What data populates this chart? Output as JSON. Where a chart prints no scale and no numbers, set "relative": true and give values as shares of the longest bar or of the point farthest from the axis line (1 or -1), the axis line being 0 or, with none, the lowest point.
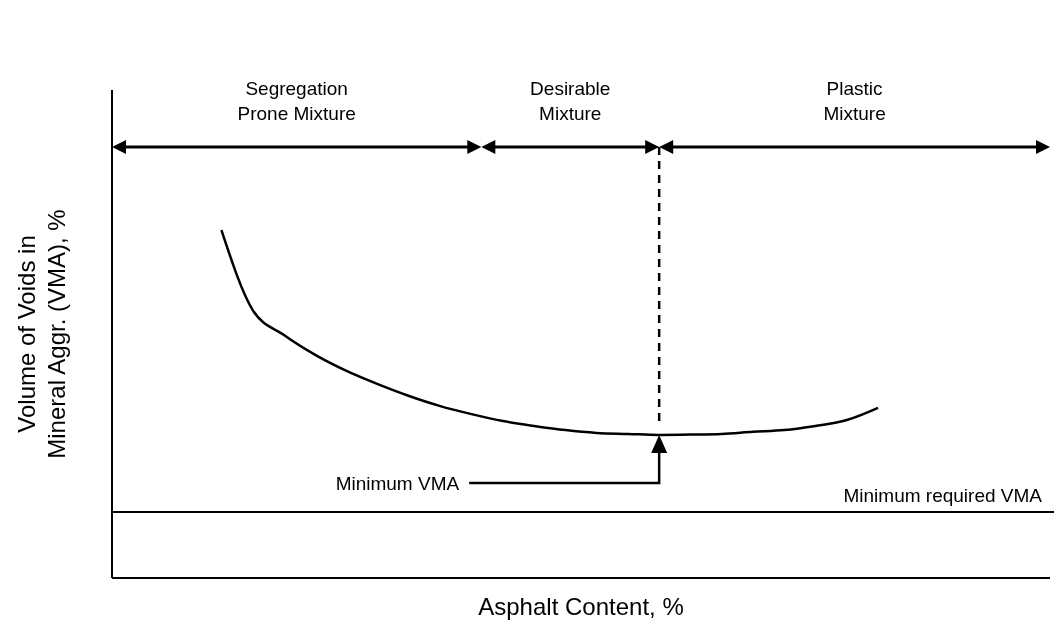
{
  "chart_data": {
    "type": "line",
    "relative": true,
    "marker": "none",
    "line_style": "solid",
    "xlabel": "Asphalt Content, %",
    "ylabel": "Volume of Voids in\nMineral Aggr. (VMA), %",
    "categories": [
      null,
      null,
      null,
      null,
      null,
      null,
      null,
      null,
      null,
      null,
      null,
      null,
      null,
      null,
      null,
      null,
      null,
      null,
      null,
      null,
      null,
      null,
      null,
      null,
      null,
      null,
      null,
      null,
      null,
      null
    ],
    "series": [
      {
        "color": "#000000",
        "values": [
          null,
          null,
          null,
          1,
          0.77,
          0.698,
          0.641,
          0.595,
          0.557,
          0.523,
          0.494,
          0.471,
          0.451,
          0.437,
          0.425,
          0.417,
          0.414,
          0.411,
          0.412,
          0.414,
          0.42,
          0.425,
          0.437,
          0.454,
          0.489,
          null,
          null,
          null,
          null,
          null
        ]
      }
    ],
    "ref_lines": [
      {
        "axis": "y",
        "value": 0.19,
        "label": "Minimum required VMA",
        "color": "#000000",
        "line_style": "solid"
      }
    ],
    "annotations": [
      "Segregation\nProne Mixture",
      "Desirable\nMixture",
      "Plastic\nMixture",
      "Minimum VMA"
    ]
  }
}
